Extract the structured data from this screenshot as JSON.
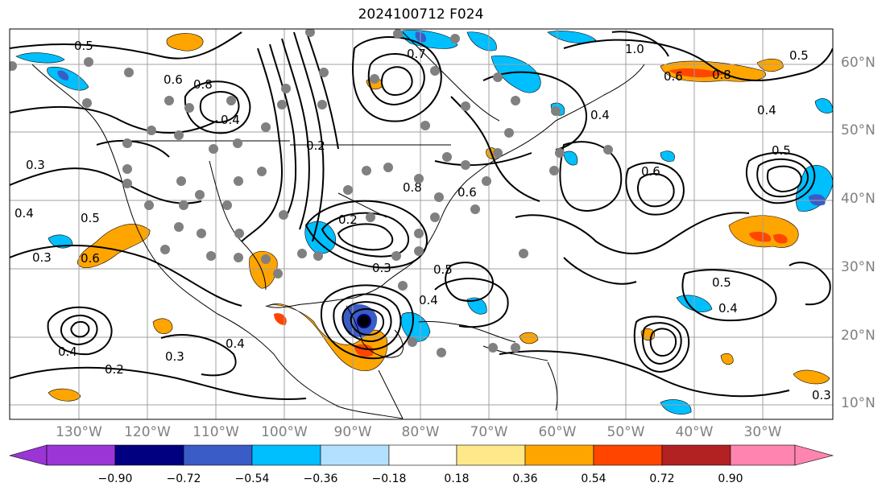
{
  "title": "2024100712 F024",
  "map": {
    "latitude_labels": [
      "60°N",
      "50°N",
      "40°N",
      "30°N",
      "20°N",
      "10°N"
    ],
    "longitude_labels": [
      "130°W",
      "120°W",
      "110°W",
      "100°W",
      "90°W",
      "80°W",
      "70°W",
      "60°W",
      "50°W",
      "40°W",
      "30°W"
    ],
    "contour_labels": [
      "0.5",
      "0.6",
      "0.8",
      "0.4",
      "0.2",
      "0.7",
      "0.3",
      "0.8",
      "0.4",
      "0.6",
      "0.5",
      "0.4",
      "0.3",
      "0.2",
      "0.3",
      "0.2",
      "0.4",
      "0.6",
      "0.5",
      "0.4",
      "0.5",
      "0.4",
      "0.3",
      "0.5",
      "0.4",
      "0.6",
      "0.8",
      "1.0",
      "0.5",
      "0.4",
      "0.3",
      "0.6"
    ]
  },
  "colorbar": {
    "ticks": [
      "−0.90",
      "−0.72",
      "−0.54",
      "−0.36",
      "−0.18",
      "0.18",
      "0.36",
      "0.54",
      "0.72",
      "0.90"
    ],
    "colors": [
      "#9b35d6",
      "#000080",
      "#3a5cc7",
      "#00bfff",
      "#b3e0ff",
      "#ffffff",
      "#ffe88a",
      "#ffa500",
      "#ff4500",
      "#b22222",
      "#ff85b0"
    ]
  }
}
